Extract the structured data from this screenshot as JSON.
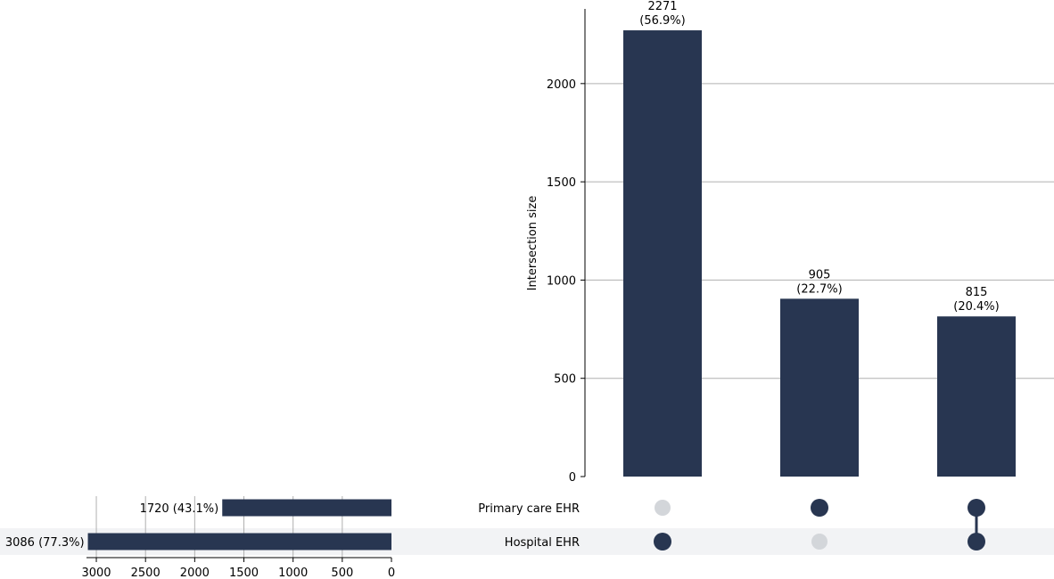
{
  "chart_data": [
    {
      "type": "bar",
      "role": "intersection-size",
      "ylabel": "Intersection size",
      "ylim": [
        0,
        2380
      ],
      "yticks": [
        0,
        500,
        1000,
        1500,
        2000
      ],
      "grid": true,
      "values": [
        2271,
        905,
        815
      ],
      "value_labels": [
        "2271",
        "905",
        "815"
      ],
      "percent_labels": [
        "(56.9%)",
        "(22.7%)",
        "(20.4%)"
      ]
    },
    {
      "type": "bar",
      "role": "set-size",
      "orientation": "horizontal",
      "categories": [
        "Primary care EHR",
        "Hospital EHR"
      ],
      "values": [
        1720,
        3086
      ],
      "value_labels": [
        "1720 (43.1%)",
        "3086 (77.3%)"
      ],
      "xlim": [
        3100,
        0
      ],
      "xticks": [
        3000,
        2500,
        2000,
        1500,
        1000,
        500,
        0
      ],
      "grid": true
    },
    {
      "type": "table",
      "role": "membership-matrix",
      "rows": [
        "Primary care EHR",
        "Hospital EHR"
      ],
      "columns": [
        [
          false,
          true
        ],
        [
          true,
          false
        ],
        [
          true,
          true
        ]
      ]
    }
  ],
  "colors": {
    "bar": "#283651",
    "dot_inactive": "#d3d6da",
    "grid": "#b0b0b0",
    "row_shade": "#f2f3f5"
  }
}
